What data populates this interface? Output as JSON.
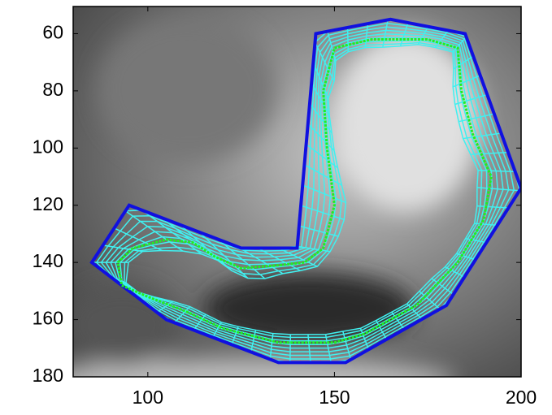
{
  "chart_data": {
    "type": "image-overlay",
    "xlim": [
      80,
      200
    ],
    "ylim": [
      50.5,
      180
    ],
    "y_reversed": true,
    "xticks": [
      100,
      150,
      200
    ],
    "yticks": [
      60,
      80,
      100,
      120,
      140,
      160,
      180
    ],
    "series": [
      {
        "color": "#1010e0",
        "x": [
          85,
          95,
          125,
          140,
          145,
          165,
          185,
          200,
          180,
          153,
          135,
          105
        ],
        "y": [
          140,
          120,
          135,
          135,
          60,
          55,
          60,
          114,
          155,
          175,
          175,
          160
        ]
      },
      {
        "color": "#22ee22",
        "x": [
          92,
          96,
          105,
          112,
          118,
          125,
          135,
          142,
          147,
          150,
          148,
          147,
          150,
          160,
          175,
          183,
          184,
          187,
          192,
          190,
          183,
          172,
          158,
          150,
          135,
          120,
          110,
          100,
          93
        ],
        "y": [
          140,
          135,
          132,
          133,
          138,
          142,
          141,
          140,
          135,
          120,
          100,
          80,
          65,
          62,
          62,
          65,
          80,
          95,
          110,
          125,
          140,
          155,
          165,
          168,
          168,
          163,
          157,
          152,
          148
        ]
      }
    ],
    "mesh_color": "#40f0f0"
  }
}
